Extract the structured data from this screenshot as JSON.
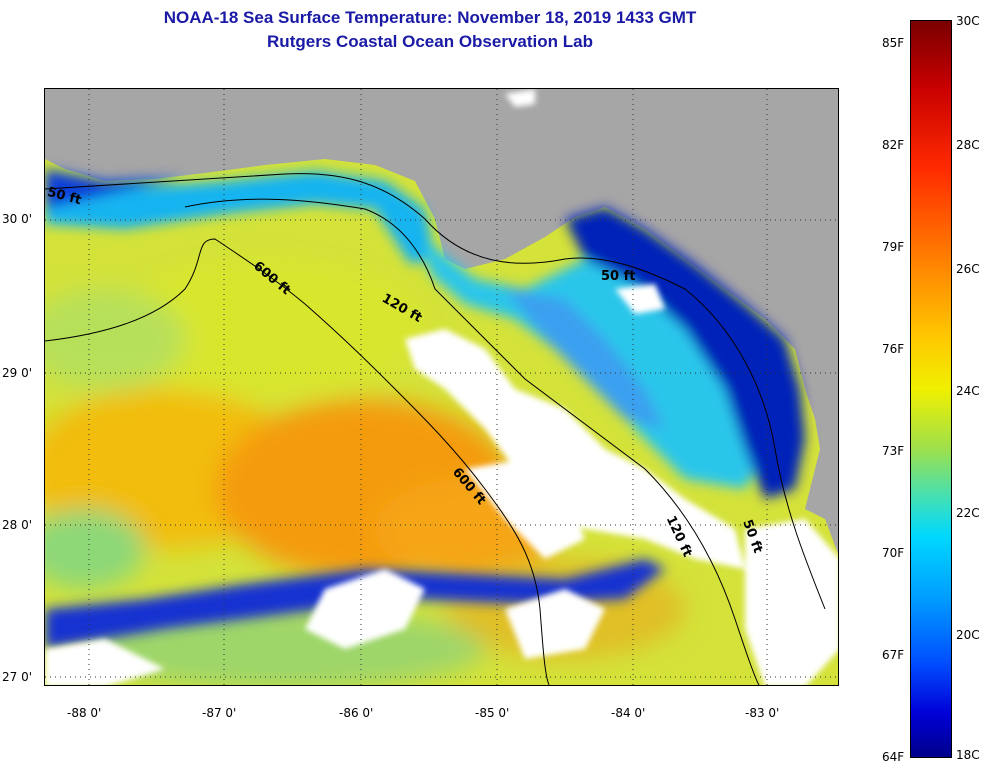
{
  "title": {
    "line1": "NOAA-18 Sea Surface Temperature:  November 18, 2019 1433 GMT",
    "line2": "Rutgers Coastal Ocean Observation Lab"
  },
  "map": {
    "lat_labels": [
      "30 0'",
      "29 0'",
      "28 0'",
      "27 0'"
    ],
    "lon_labels": [
      "-88 0'",
      "-87 0'",
      "-86 0'",
      "-85 0'",
      "-84 0'",
      "-83 0'"
    ],
    "contour_labels": [
      "50 ft",
      "600 ft",
      "120 ft",
      "50 ft",
      "600 ft",
      "120 ft",
      "50 ft"
    ],
    "colors": {
      "land": "#a6a6a6",
      "cloud": "#ffffff",
      "contour": "#000000"
    }
  },
  "colorbar": {
    "f_labels": [
      "85F",
      "82F",
      "79F",
      "76F",
      "73F",
      "70F",
      "67F",
      "64F"
    ],
    "c_labels": [
      "30C",
      "28C",
      "26C",
      "24C",
      "22C",
      "20C",
      "18C"
    ]
  }
}
